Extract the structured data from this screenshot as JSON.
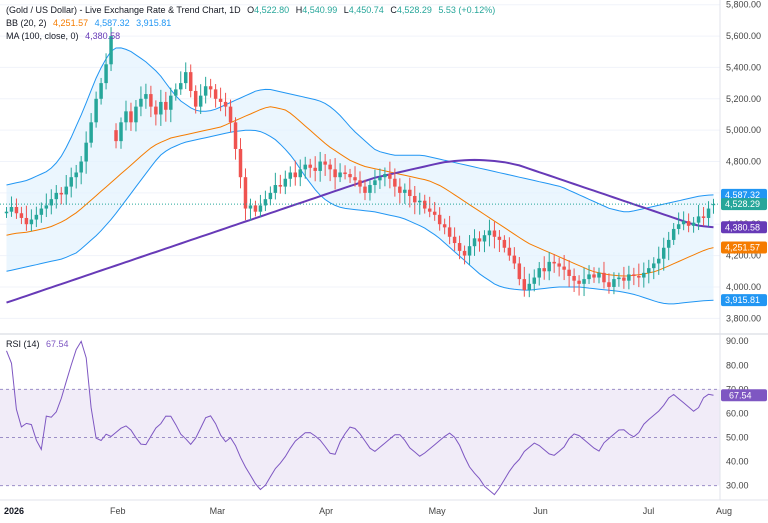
{
  "legend": {
    "title": "(Gold / US Dollar) - Live Exchange Rate & Trend Chart, 1D",
    "o_label": "O",
    "o_value": "4,522.80",
    "h_label": "H",
    "h_value": "4,540.99",
    "l_label": "L",
    "l_value": "4,450.74",
    "c_label": "C",
    "c_value": "4,528.29",
    "change": "5.53 (+0.12%)",
    "bb_label": "BB (20, 2)",
    "bb_mid": "4,251.57",
    "bb_upper": "4,587.32",
    "bb_lower": "3,915.81",
    "ma_label": "MA (100, close, 0)",
    "ma_value": "4,380.58",
    "rsi_label": "RSI (14)",
    "rsi_value": "67.54"
  },
  "colors": {
    "up": "#26a69a",
    "down": "#ef5350",
    "bb_band": "#2196f3",
    "bb_fill": "#e3f2fd",
    "bb_mid": "#f57c00",
    "ma": "#673ab7",
    "rsi_line": "#7e57c2",
    "rsi_fill": "#ede7f6",
    "last_price": "#26a69a"
  },
  "chart_data": {
    "type": "candlestick",
    "price_axis": {
      "ticks": [
        3800,
        4000,
        4200,
        4400,
        4600,
        4800,
        5000,
        5200,
        5400,
        5600,
        5800
      ],
      "tick_labels": [
        "3,800.00",
        "4,000.00",
        "4,200.00",
        "4,400.00",
        "4,600.00",
        "4,800.00",
        "5,000.00",
        "5,200.00",
        "5,400.00",
        "5,600.00",
        "5,800.00"
      ],
      "range": [
        3700,
        5830
      ]
    },
    "rsi_axis": {
      "ticks": [
        30,
        40,
        50,
        60,
        70,
        80,
        90
      ],
      "tick_labels": [
        "30.00",
        "40.00",
        "50.00",
        "60.00",
        "70.00",
        "80.00",
        "90.00"
      ],
      "range": [
        24,
        93
      ],
      "bands": [
        30,
        50,
        70
      ]
    },
    "x_labels": [
      {
        "label": "2026",
        "bold": true,
        "index": 0
      },
      {
        "label": "Feb",
        "bold": false,
        "index": 22
      },
      {
        "label": "Mar",
        "bold": false,
        "index": 42
      },
      {
        "label": "Apr",
        "bold": false,
        "index": 64
      },
      {
        "label": "May",
        "bold": false,
        "index": 86
      },
      {
        "label": "Jun",
        "bold": false,
        "index": 107
      },
      {
        "label": "Jul",
        "bold": false,
        "index": 129
      },
      {
        "label": "Aug",
        "bold": false,
        "index": 150
      }
    ],
    "badges": [
      {
        "value": 4587.32,
        "label": "4,587.32",
        "color": "#2196f3"
      },
      {
        "value": 4528.29,
        "label": "4,528.29",
        "color": "#26a69a"
      },
      {
        "value": 4380.58,
        "label": "4,380.58",
        "color": "#673ab7"
      },
      {
        "value": 4251.57,
        "label": "4,251.57",
        "color": "#f57c00"
      },
      {
        "value": 3915.81,
        "label": "3,915.81",
        "color": "#2196f3"
      }
    ],
    "rsi_badge": {
      "value": 67.54,
      "label": "67.54"
    },
    "closes": [
      4480,
      4510,
      4470,
      4440,
      4400,
      4430,
      4460,
      4500,
      4520,
      4560,
      4600,
      4590,
      4640,
      4700,
      4730,
      4800,
      4920,
      5050,
      5200,
      5300,
      5420,
      5600,
      4930,
      5050,
      5120,
      5050,
      5150,
      5200,
      5230,
      5150,
      5100,
      5180,
      5130,
      5220,
      5260,
      5300,
      5370,
      5250,
      5150,
      5220,
      5280,
      5260,
      5200,
      5180,
      5150,
      5050,
      4880,
      4700,
      4500,
      4520,
      4480,
      4520,
      4560,
      4600,
      4650,
      4640,
      4690,
      4730,
      4700,
      4750,
      4780,
      4760,
      4740,
      4800,
      4780,
      4750,
      4700,
      4730,
      4720,
      4700,
      4680,
      4640,
      4600,
      4650,
      4680,
      4700,
      4720,
      4690,
      4640,
      4600,
      4620,
      4580,
      4540,
      4550,
      4500,
      4480,
      4460,
      4400,
      4380,
      4320,
      4280,
      4230,
      4200,
      4260,
      4310,
      4290,
      4330,
      4360,
      4320,
      4300,
      4250,
      4200,
      4150,
      4050,
      3980,
      4020,
      4060,
      4120,
      4100,
      4160,
      4150,
      4130,
      4110,
      4070,
      4040,
      4020,
      4050,
      4080,
      4060,
      4090,
      4030,
      4000,
      4050,
      4060,
      4040,
      4080,
      4070,
      4060,
      4090,
      4120,
      4150,
      4180,
      4250,
      4300,
      4370,
      4400,
      4420,
      4390,
      4410,
      4450,
      4440,
      4500,
      4528
    ],
    "opens": [
      4470,
      4480,
      4510,
      4470,
      4440,
      4400,
      4430,
      4460,
      4500,
      4520,
      4560,
      4600,
      4590,
      4640,
      4700,
      4730,
      4800,
      4920,
      5050,
      5200,
      5300,
      5420,
      5000,
      4930,
      5050,
      5120,
      5050,
      5150,
      5200,
      5230,
      5150,
      5100,
      5180,
      5130,
      5220,
      5260,
      5300,
      5370,
      5250,
      5150,
      5220,
      5280,
      5260,
      5200,
      5180,
      5150,
      5050,
      4880,
      4700,
      4500,
      4520,
      4480,
      4520,
      4560,
      4600,
      4650,
      4640,
      4690,
      4730,
      4700,
      4750,
      4780,
      4760,
      4740,
      4800,
      4780,
      4750,
      4700,
      4730,
      4720,
      4700,
      4680,
      4640,
      4600,
      4650,
      4680,
      4700,
      4720,
      4690,
      4640,
      4600,
      4620,
      4580,
      4540,
      4550,
      4500,
      4480,
      4460,
      4400,
      4380,
      4320,
      4280,
      4230,
      4200,
      4260,
      4310,
      4290,
      4330,
      4360,
      4320,
      4300,
      4250,
      4200,
      4150,
      4050,
      3980,
      4020,
      4060,
      4120,
      4100,
      4160,
      4150,
      4130,
      4110,
      4070,
      4040,
      4020,
      4050,
      4080,
      4060,
      4090,
      4030,
      4000,
      4050,
      4060,
      4040,
      4080,
      4070,
      4060,
      4090,
      4120,
      4150,
      4180,
      4250,
      4300,
      4370,
      4400,
      4420,
      4390,
      4410,
      4450,
      4440,
      4523
    ],
    "bb_upper": [
      4650,
      4660,
      4670,
      4680,
      4700,
      4720,
      4740,
      4780,
      4840,
      4920,
      5020,
      5120,
      5230,
      5340,
      5430,
      5500,
      5530,
      5520,
      5500,
      5470,
      5440,
      5400,
      5360,
      5300,
      5240,
      5190,
      5160,
      5130,
      5120,
      5120,
      5130,
      5150,
      5170,
      5190,
      5210,
      5230,
      5250,
      5260,
      5260,
      5250,
      5240,
      5230,
      5220,
      5210,
      5200,
      5190,
      5170,
      5140,
      5100,
      5050,
      5000,
      4960,
      4920,
      4880,
      4860,
      4850,
      4840,
      4840,
      4840,
      4840,
      4840,
      4830,
      4820,
      4810,
      4800,
      4790,
      4780,
      4770,
      4760,
      4750,
      4740,
      4730,
      4720,
      4710,
      4700,
      4690,
      4680,
      4670,
      4660,
      4650,
      4640,
      4620,
      4600,
      4580,
      4560,
      4540,
      4520,
      4500,
      4490,
      4480,
      4480,
      4490,
      4500,
      4510,
      4520,
      4530,
      4540,
      4550,
      4560,
      4570,
      4580,
      4585,
      4587
    ],
    "bb_mid": [
      4330,
      4340,
      4345,
      4350,
      4360,
      4370,
      4380,
      4400,
      4420,
      4450,
      4480,
      4520,
      4560,
      4600,
      4640,
      4680,
      4720,
      4760,
      4800,
      4840,
      4880,
      4910,
      4930,
      4950,
      4960,
      4970,
      4980,
      4990,
      5000,
      5010,
      5020,
      5040,
      5060,
      5080,
      5100,
      5120,
      5140,
      5150,
      5140,
      5130,
      5100,
      5060,
      5020,
      4980,
      4940,
      4900,
      4870,
      4840,
      4810,
      4790,
      4770,
      4760,
      4750,
      4740,
      4730,
      4720,
      4710,
      4700,
      4690,
      4680,
      4660,
      4640,
      4610,
      4580,
      4550,
      4520,
      4490,
      4460,
      4430,
      4400,
      4370,
      4340,
      4310,
      4280,
      4260,
      4240,
      4220,
      4200,
      4180,
      4160,
      4140,
      4120,
      4100,
      4090,
      4080,
      4075,
      4070,
      4070,
      4075,
      4080,
      4090,
      4100,
      4120,
      4140,
      4160,
      4180,
      4200,
      4220,
      4240,
      4251
    ],
    "bb_lower": [
      4100,
      4110,
      4120,
      4130,
      4140,
      4150,
      4160,
      4170,
      4180,
      4200,
      4220,
      4260,
      4300,
      4340,
      4390,
      4440,
      4500,
      4560,
      4620,
      4680,
      4740,
      4800,
      4850,
      4880,
      4900,
      4920,
      4930,
      4940,
      4950,
      4960,
      4970,
      4980,
      4990,
      4995,
      5000,
      5000,
      4990,
      4970,
      4940,
      4900,
      4850,
      4790,
      4720,
      4660,
      4600,
      4560,
      4530,
      4510,
      4500,
      4495,
      4490,
      4485,
      4480,
      4470,
      4460,
      4450,
      4440,
      4420,
      4400,
      4380,
      4350,
      4320,
      4280,
      4240,
      4200,
      4160,
      4120,
      4080,
      4050,
      4020,
      4000,
      3990,
      3985,
      3980,
      3980,
      3985,
      3990,
      3995,
      4000,
      4000,
      4000,
      4000,
      3995,
      3990,
      3985,
      3980,
      3975,
      3970,
      3960,
      3950,
      3935,
      3920,
      3905,
      3895,
      3890,
      3895,
      3900,
      3905,
      3910,
      3913,
      3915
    ],
    "ma100": [
      3900,
      3915,
      3930,
      3945,
      3960,
      3975,
      3990,
      4005,
      4020,
      4035,
      4050,
      4065,
      4080,
      4095,
      4110,
      4125,
      4140,
      4155,
      4170,
      4185,
      4200,
      4215,
      4230,
      4245,
      4260,
      4275,
      4290,
      4305,
      4320,
      4335,
      4350,
      4365,
      4380,
      4395,
      4410,
      4425,
      4440,
      4455,
      4470,
      4485,
      4500,
      4515,
      4530,
      4545,
      4560,
      4575,
      4590,
      4605,
      4620,
      4635,
      4650,
      4665,
      4680,
      4695,
      4705,
      4715,
      4725,
      4735,
      4745,
      4755,
      4765,
      4775,
      4785,
      4795,
      4800,
      4805,
      4808,
      4810,
      4810,
      4808,
      4805,
      4800,
      4795,
      4785,
      4775,
      4760,
      4745,
      4730,
      4715,
      4700,
      4685,
      4670,
      4655,
      4640,
      4625,
      4610,
      4595,
      4580,
      4565,
      4550,
      4535,
      4520,
      4505,
      4490,
      4475,
      4460,
      4445,
      4430,
      4415,
      4400,
      4390,
      4385,
      4381
    ],
    "rsi": [
      86,
      80,
      55,
      54,
      58,
      50,
      44,
      60,
      58,
      62,
      70,
      78,
      86,
      90,
      82,
      55,
      46,
      52,
      50,
      52,
      54,
      55,
      52,
      48,
      46,
      50,
      54,
      56,
      60,
      58,
      52,
      50,
      47,
      50,
      55,
      60,
      58,
      52,
      48,
      50,
      46,
      40,
      36,
      32,
      28,
      30,
      34,
      38,
      40,
      44,
      48,
      50,
      52,
      52,
      50,
      48,
      44,
      42,
      48,
      52,
      55,
      53,
      50,
      46,
      44,
      46,
      48,
      50,
      52,
      50,
      46,
      44,
      42,
      44,
      46,
      48,
      50,
      52,
      50,
      46,
      40,
      36,
      34,
      30,
      28,
      26,
      30,
      34,
      38,
      40,
      44,
      46,
      48,
      46,
      44,
      42,
      44,
      46,
      50,
      52,
      50,
      48,
      46,
      44,
      48,
      50,
      52,
      54,
      52,
      50,
      52,
      56,
      58,
      60,
      62,
      66,
      68,
      66,
      64,
      62,
      60,
      66,
      68,
      67.54
    ]
  }
}
